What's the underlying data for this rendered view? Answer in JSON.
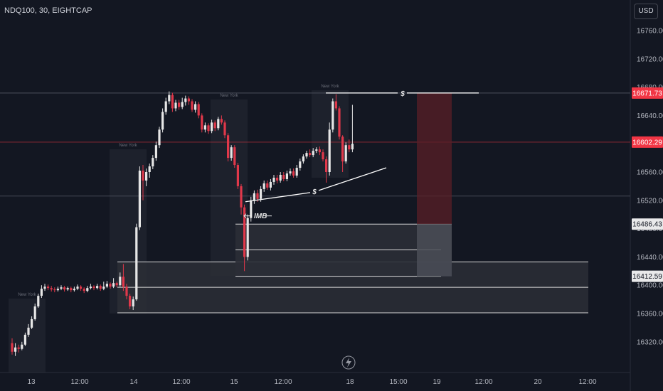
{
  "header": {
    "symbol": "NDQ100, 30, EIGHTCAP",
    "currency": "USD"
  },
  "colors": {
    "background": "#131722",
    "up": "#e6e6e6",
    "down": "#e0384a",
    "price_line": "#f23645",
    "session_box": "#2a2e39",
    "box": "#2b2e36",
    "risk": "#5a1f27"
  },
  "icons": {
    "bolt": "lightning-icon"
  },
  "chart_data": {
    "type": "candlestick",
    "title": "NDQ100, 30, EIGHTCAP",
    "ylim": [
      16300,
      16790
    ],
    "y_ticks": [
      "16760.00",
      "16720.00",
      "16680.00",
      "16640.00",
      "16600.00",
      "16560.00",
      "16520.00",
      "16480.00",
      "16440.00",
      "16400.00",
      "16360.00",
      "16320.00"
    ],
    "x_ticks": [
      "13",
      "12:00",
      "14",
      "12:00",
      "15",
      "12:00",
      "18",
      "15:00",
      "19",
      "12:00",
      "20",
      "12:00"
    ],
    "price_badges": [
      {
        "label": "16671.73",
        "value": 16671.73,
        "style": "red"
      },
      {
        "label": "16602.29",
        "value": 16602.29,
        "style": "red"
      },
      {
        "label": "16486.43",
        "value": 16486.43,
        "style": "gray"
      },
      {
        "label": "16412.59",
        "value": 16412.59,
        "style": "gray"
      }
    ],
    "session_label": "New York",
    "annotations": {
      "liquidity": "$",
      "imbalance": "IMB"
    },
    "levels": [
      16671.73,
      16602.29,
      16526,
      16486.43,
      16450,
      16433,
      16412.59,
      16397,
      16361
    ],
    "candles": [
      [
        16318,
        16306,
        16325,
        16302
      ],
      [
        16306,
        16312,
        16318,
        16300
      ],
      [
        16312,
        16310,
        16316,
        16305
      ],
      [
        16310,
        16316,
        16320,
        16308
      ],
      [
        16316,
        16330,
        16333,
        16314
      ],
      [
        16330,
        16340,
        16345,
        16327
      ],
      [
        16340,
        16352,
        16356,
        16338
      ],
      [
        16352,
        16370,
        16374,
        16350
      ],
      [
        16370,
        16385,
        16388,
        16368
      ],
      [
        16385,
        16395,
        16400,
        16382
      ],
      [
        16395,
        16398,
        16402,
        16392
      ],
      [
        16398,
        16396,
        16401,
        16393
      ],
      [
        16396,
        16394,
        16399,
        16391
      ],
      [
        16394,
        16393,
        16397,
        16390
      ],
      [
        16393,
        16395,
        16398,
        16391
      ],
      [
        16395,
        16397,
        16400,
        16393
      ],
      [
        16397,
        16394,
        16399,
        16391
      ],
      [
        16394,
        16396,
        16398,
        16392
      ],
      [
        16396,
        16393,
        16398,
        16390
      ],
      [
        16393,
        16395,
        16398,
        16391
      ],
      [
        16395,
        16398,
        16401,
        16393
      ],
      [
        16398,
        16395,
        16400,
        16392
      ],
      [
        16395,
        16392,
        16397,
        16389
      ],
      [
        16392,
        16396,
        16399,
        16390
      ],
      [
        16396,
        16398,
        16402,
        16394
      ],
      [
        16398,
        16396,
        16400,
        16393
      ],
      [
        16396,
        16399,
        16402,
        16394
      ],
      [
        16399,
        16395,
        16401,
        16392
      ],
      [
        16395,
        16398,
        16405,
        16393
      ],
      [
        16398,
        16402,
        16406,
        16396
      ],
      [
        16402,
        16398,
        16404,
        16395
      ],
      [
        16398,
        16403,
        16410,
        16396
      ],
      [
        16403,
        16400,
        16405,
        16397
      ],
      [
        16400,
        16412,
        16418,
        16398
      ],
      [
        16412,
        16398,
        16430,
        16392
      ],
      [
        16398,
        16385,
        16402,
        16380
      ],
      [
        16385,
        16370,
        16388,
        16366
      ],
      [
        16370,
        16380,
        16384,
        16365
      ],
      [
        16380,
        16482,
        16487,
        16378
      ],
      [
        16482,
        16562,
        16568,
        16478
      ],
      [
        16562,
        16548,
        16570,
        16520
      ],
      [
        16548,
        16560,
        16565,
        16540
      ],
      [
        16560,
        16568,
        16572,
        16552
      ],
      [
        16568,
        16580,
        16584,
        16564
      ],
      [
        16580,
        16598,
        16603,
        16576
      ],
      [
        16598,
        16620,
        16624,
        16594
      ],
      [
        16620,
        16645,
        16650,
        16616
      ],
      [
        16645,
        16660,
        16665,
        16641
      ],
      [
        16660,
        16669,
        16674,
        16656
      ],
      [
        16669,
        16650,
        16672,
        16645
      ],
      [
        16650,
        16658,
        16662,
        16646
      ],
      [
        16658,
        16652,
        16662,
        16648
      ],
      [
        16652,
        16659,
        16665,
        16649
      ],
      [
        16659,
        16664,
        16668,
        16654
      ],
      [
        16664,
        16660,
        16667,
        16655
      ],
      [
        16660,
        16648,
        16663,
        16645
      ],
      [
        16648,
        16656,
        16660,
        16644
      ],
      [
        16656,
        16640,
        16659,
        16636
      ],
      [
        16640,
        16620,
        16643,
        16616
      ],
      [
        16620,
        16626,
        16630,
        16616
      ],
      [
        16626,
        16618,
        16629,
        16614
      ],
      [
        16618,
        16630,
        16634,
        16615
      ],
      [
        16630,
        16622,
        16633,
        16618
      ],
      [
        16622,
        16635,
        16638,
        16619
      ],
      [
        16635,
        16630,
        16640,
        16627
      ],
      [
        16630,
        16612,
        16633,
        16608
      ],
      [
        16612,
        16580,
        16615,
        16575
      ],
      [
        16580,
        16595,
        16598,
        16576
      ],
      [
        16595,
        16570,
        16598,
        16566
      ],
      [
        16570,
        16540,
        16573,
        16536
      ],
      [
        16540,
        16510,
        16543,
        16500
      ],
      [
        16510,
        16440,
        16514,
        16420
      ],
      [
        16440,
        16495,
        16500,
        16435
      ],
      [
        16495,
        16520,
        16525,
        16490
      ],
      [
        16520,
        16530,
        16534,
        16515
      ],
      [
        16530,
        16522,
        16535,
        16518
      ],
      [
        16522,
        16536,
        16540,
        16518
      ],
      [
        16536,
        16544,
        16548,
        16532
      ],
      [
        16544,
        16538,
        16548,
        16535
      ],
      [
        16538,
        16546,
        16550,
        16534
      ],
      [
        16546,
        16552,
        16556,
        16542
      ],
      [
        16552,
        16548,
        16556,
        16544
      ],
      [
        16548,
        16556,
        16560,
        16545
      ],
      [
        16556,
        16550,
        16560,
        16547
      ],
      [
        16550,
        16558,
        16562,
        16547
      ],
      [
        16558,
        16561,
        16565,
        16555
      ],
      [
        16561,
        16555,
        16565,
        16552
      ],
      [
        16555,
        16566,
        16570,
        16552
      ],
      [
        16566,
        16575,
        16579,
        16562
      ],
      [
        16575,
        16582,
        16585,
        16572
      ],
      [
        16582,
        16587,
        16590,
        16579
      ],
      [
        16587,
        16584,
        16592,
        16581
      ],
      [
        16584,
        16590,
        16594,
        16581
      ],
      [
        16590,
        16592,
        16595,
        16587
      ],
      [
        16592,
        16588,
        16596,
        16584
      ],
      [
        16588,
        16578,
        16592,
        16575
      ],
      [
        16578,
        16560,
        16582,
        16545
      ],
      [
        16560,
        16620,
        16630,
        16555
      ],
      [
        16620,
        16660,
        16664,
        16616
      ],
      [
        16660,
        16650,
        16670,
        16647
      ],
      [
        16650,
        16610,
        16653,
        16606
      ],
      [
        16610,
        16575,
        16612,
        16560
      ],
      [
        16575,
        16598,
        16602,
        16572
      ],
      [
        16598,
        16592,
        16606,
        16588
      ],
      [
        16592,
        16600,
        16655,
        16588
      ]
    ]
  }
}
